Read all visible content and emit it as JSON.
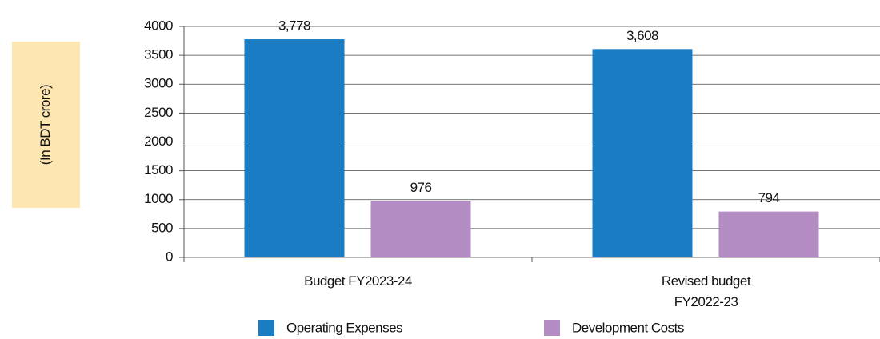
{
  "chart_data": {
    "type": "bar",
    "y_label": "(In BDT crore)",
    "categories": [
      "Budget FY2023-24",
      "Revised budget FY2022-23"
    ],
    "series": [
      {
        "name": "Operating Expenses",
        "color": "#1a7dc4",
        "values": [
          3778,
          3608
        ],
        "value_labels": [
          "3,778",
          "3,608"
        ]
      },
      {
        "name": "Development Costs",
        "color": "#b28cc2",
        "values": [
          976,
          794
        ],
        "value_labels": [
          "976",
          "794"
        ]
      }
    ],
    "ylim": [
      0,
      4000
    ],
    "yticks": [
      0,
      500,
      1000,
      1500,
      2000,
      2500,
      3000,
      3500,
      4000
    ],
    "grid": true
  }
}
